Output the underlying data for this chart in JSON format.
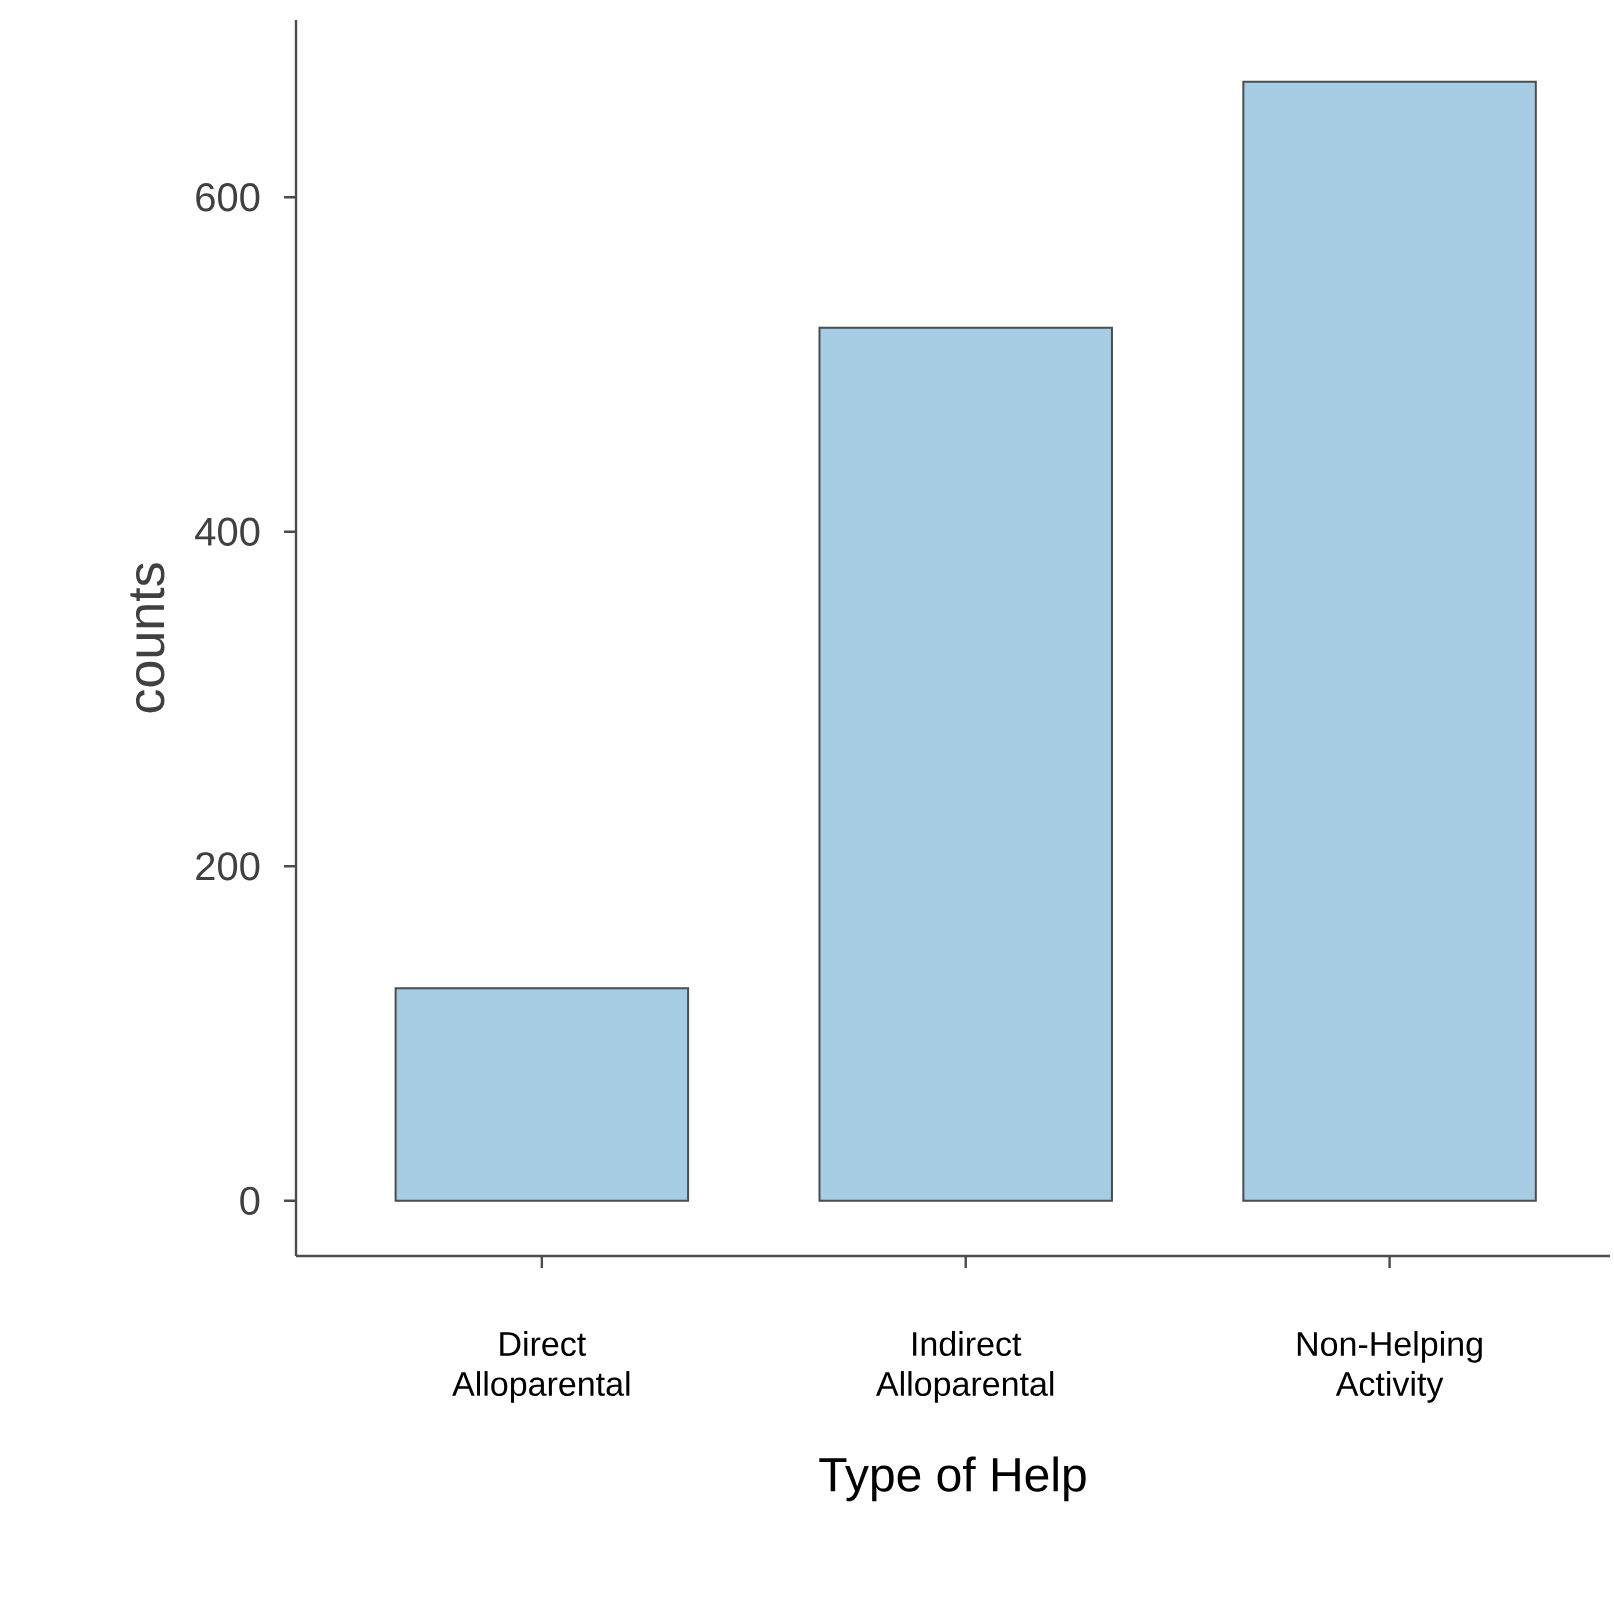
{
  "chart_data": {
    "type": "bar",
    "xlabel": "Type of Help",
    "ylabel": "counts",
    "categories": [
      "Direct Alloparental",
      "Indirect Alloparental",
      "Non-Helping Activity"
    ],
    "values": [
      127,
      522,
      669
    ],
    "color": "#a6cde3",
    "ylim": [
      -33,
      706
    ],
    "yticks": [
      0,
      200,
      400,
      600
    ],
    "grid": false
  }
}
